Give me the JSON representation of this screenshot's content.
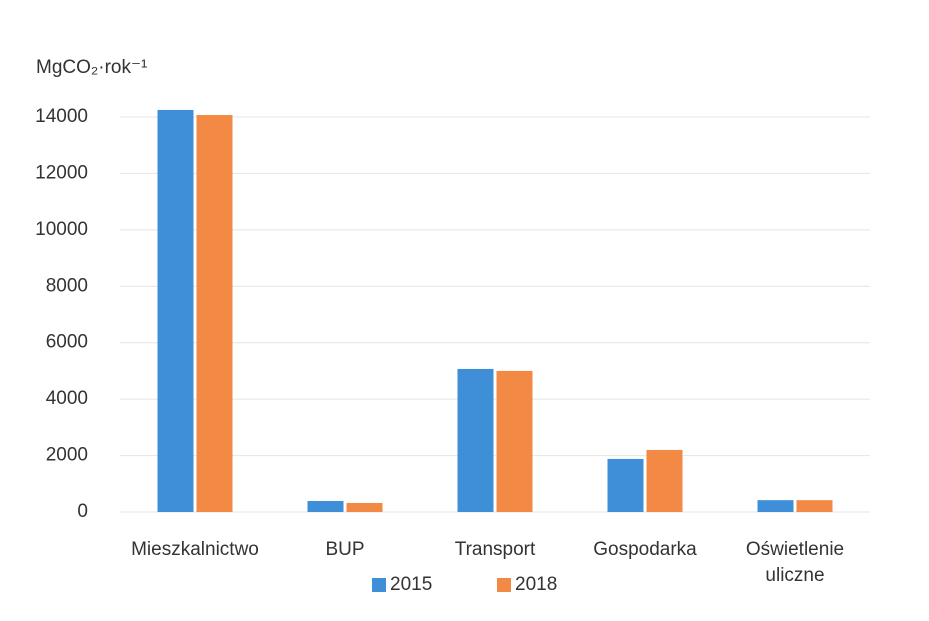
{
  "chart_data": {
    "type": "bar",
    "y_axis_label": "MgCO₂·rok⁻¹",
    "categories": [
      "Mieszkalnictwo",
      "BUP",
      "Transport",
      "Gospodarka",
      "Oświetlenie uliczne"
    ],
    "series": [
      {
        "name": "2015",
        "color": "#3f8fd8",
        "values": [
          14250,
          390,
          5070,
          1880,
          420
        ]
      },
      {
        "name": "2018",
        "color": "#f28a45",
        "values": [
          14070,
          320,
          5000,
          2200,
          420
        ]
      }
    ],
    "ylim": [
      0,
      14000
    ],
    "yticks": [
      0,
      2000,
      4000,
      6000,
      8000,
      10000,
      12000,
      14000
    ],
    "grid": true,
    "legend": "bottom"
  }
}
